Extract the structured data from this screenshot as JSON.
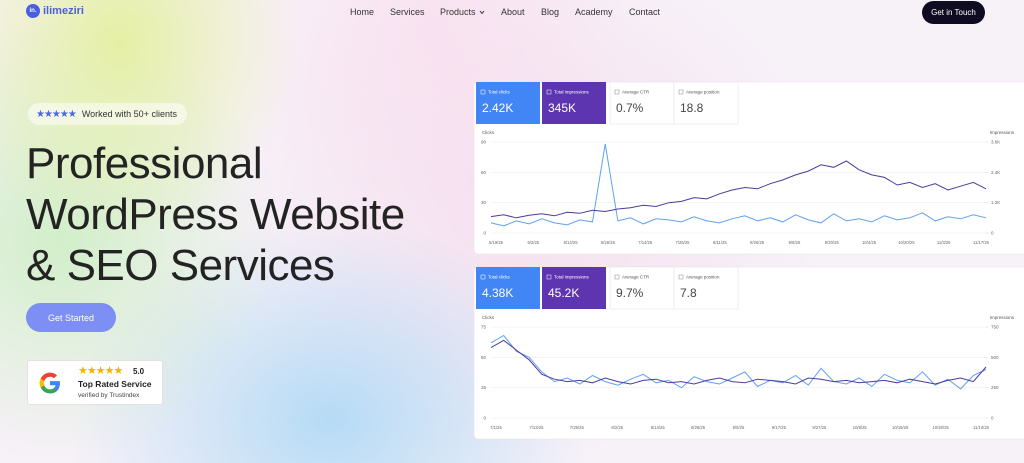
{
  "nav": {
    "logo_mark": "in.",
    "logo": "ilimeziri",
    "links": [
      "Home",
      "Services",
      "Products",
      "About",
      "Blog",
      "Academy",
      "Contact"
    ],
    "cta": "Get in Touch"
  },
  "hero": {
    "badge": "Worked with 50+ clients",
    "title_lines": [
      "Professional",
      "WordPress Website",
      "& SEO Services"
    ],
    "button": "Get Started",
    "review": {
      "score": "5.0",
      "label": "Top Rated Service",
      "verified": "verified by Trustindex"
    }
  },
  "charts": [
    {
      "type": "line",
      "metrics": [
        {
          "label": "Total clicks",
          "value": "2.42K"
        },
        {
          "label": "Total impressions",
          "value": "345K"
        },
        {
          "label": "Average CTR",
          "value": "0.7%"
        },
        {
          "label": "Average position",
          "value": "18.8"
        }
      ],
      "y_label": "Clicks",
      "y2_label": "Impressions",
      "ylim": [
        0,
        90
      ],
      "yticks": [
        0,
        30,
        60,
        90
      ],
      "y2lim": [
        0,
        3600
      ],
      "y2ticks": [
        0,
        {
          "value": 1200,
          "label": "1.2K"
        },
        {
          "value": 2400,
          "label": "2.4K"
        },
        {
          "value": 3600,
          "label": "3.6K"
        }
      ],
      "x_labels": [
        "5/19/25",
        "6/2/25",
        "6/14/25",
        "6/26/25",
        "7/14/25",
        "7/26/25",
        "8/11/25",
        "8/26/25",
        "9/8/25",
        "9/20/25",
        "10/4/25",
        "10/20/25",
        "11/3/25",
        "11/17/25"
      ],
      "series": [
        {
          "name": "Clicks",
          "color": "#5fa2f0",
          "values": [
            10,
            7,
            12,
            9,
            14,
            10,
            8,
            13,
            11,
            88,
            12,
            15,
            9,
            14,
            13,
            11,
            16,
            12,
            10,
            14,
            17,
            12,
            15,
            11,
            18,
            13,
            10,
            19,
            12,
            14,
            11,
            17,
            13,
            15,
            20,
            12,
            16,
            14,
            18,
            15
          ]
        },
        {
          "name": "Impressions",
          "color": "#4d3a9e",
          "axis": "y2",
          "values": [
            650,
            720,
            600,
            700,
            760,
            680,
            820,
            780,
            900,
            850,
            950,
            1000,
            1100,
            1050,
            1200,
            1250,
            1400,
            1350,
            1550,
            1700,
            1800,
            1750,
            1950,
            2100,
            2300,
            2450,
            2700,
            2600,
            2850,
            2500,
            2300,
            2200,
            1900,
            2000,
            1800,
            1950,
            1700,
            1850,
            2000,
            1750
          ]
        }
      ]
    },
    {
      "type": "line",
      "metrics": [
        {
          "label": "Total clicks",
          "value": "4.38K"
        },
        {
          "label": "Total impressions",
          "value": "45.2K"
        },
        {
          "label": "Average CTR",
          "value": "9.7%"
        },
        {
          "label": "Average position",
          "value": "7.8"
        }
      ],
      "y_label": "Clicks",
      "y2_label": "Impressions",
      "ylim": [
        0,
        75
      ],
      "yticks": [
        0,
        25,
        50,
        75
      ],
      "y2lim": [
        0,
        750
      ],
      "y2ticks": [
        0,
        250,
        500,
        750
      ],
      "x_labels": [
        "7/1/25",
        "7/13/25",
        "7/25/25",
        "8/2/25",
        "8/14/25",
        "8/26/25",
        "9/5/25",
        "9/17/25",
        "9/27/25",
        "10/8/25",
        "10/19/25",
        "10/30/25",
        "11/10/25"
      ],
      "series": [
        {
          "name": "Clicks",
          "color": "#5fa2f0",
          "values": [
            62,
            68,
            55,
            50,
            38,
            30,
            33,
            28,
            35,
            30,
            27,
            32,
            36,
            29,
            31,
            25,
            34,
            30,
            28,
            33,
            38,
            26,
            31,
            29,
            35,
            27,
            41,
            30,
            28,
            33,
            26,
            36,
            31,
            29,
            38,
            27,
            32,
            24,
            35,
            40
          ]
        },
        {
          "name": "Impressions",
          "color": "#4d3a9e",
          "axis": "y2",
          "values": [
            580,
            640,
            560,
            480,
            360,
            320,
            300,
            310,
            290,
            330,
            300,
            280,
            310,
            320,
            290,
            300,
            280,
            310,
            330,
            300,
            290,
            320,
            310,
            300,
            280,
            330,
            320,
            300,
            310,
            290,
            300,
            310,
            290,
            320,
            300,
            280,
            310,
            330,
            300,
            420
          ]
        }
      ]
    }
  ]
}
